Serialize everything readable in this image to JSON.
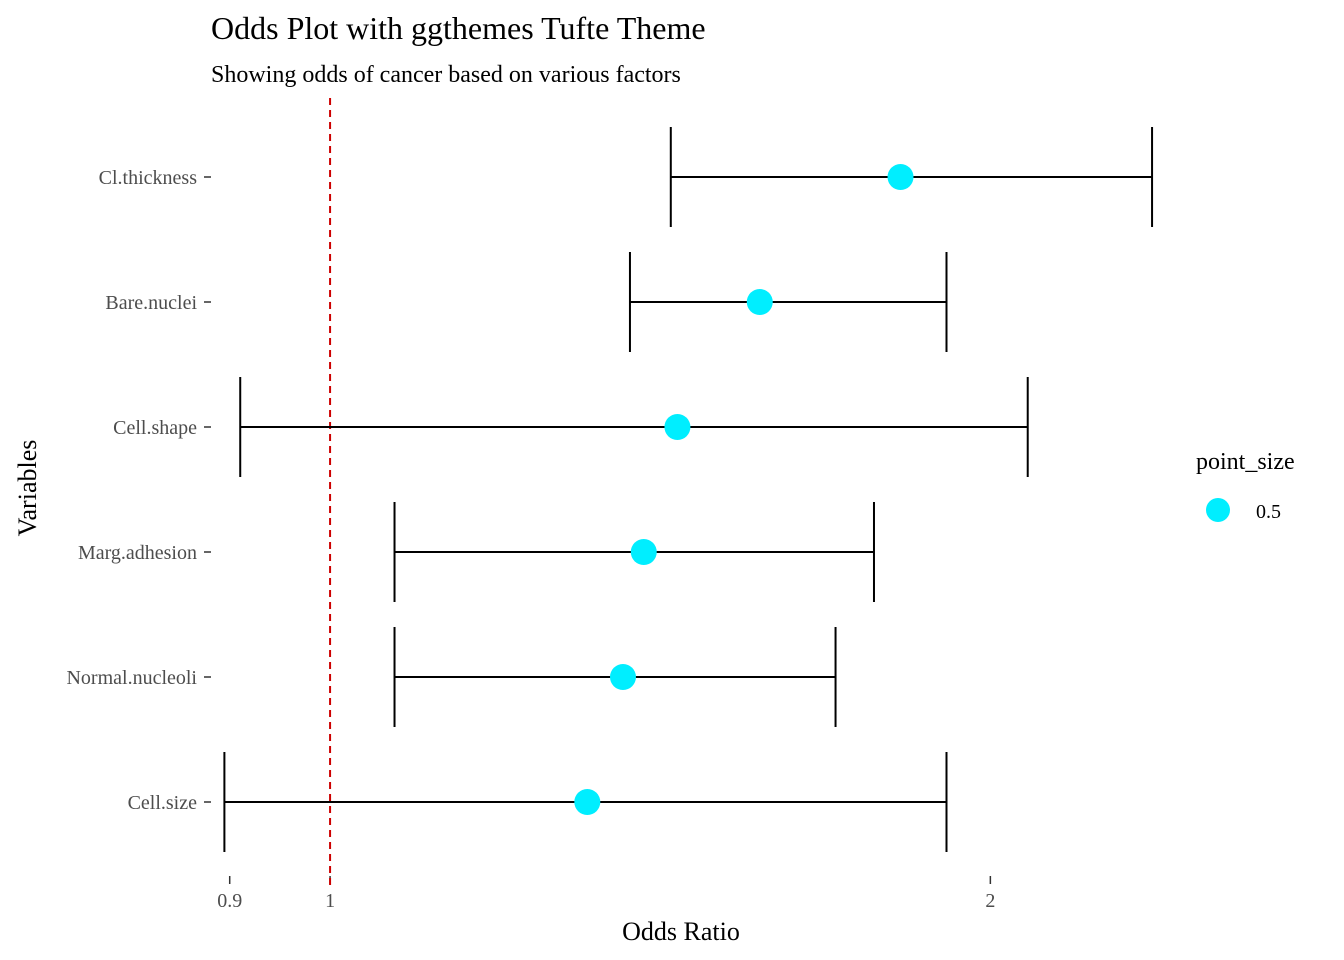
{
  "chart_data": {
    "type": "scatter",
    "title": "Odds Plot with ggthemes Tufte Theme",
    "subtitle": "Showing odds of cancer based on various factors",
    "xlabel": "Odds Ratio",
    "ylabel": "Variables",
    "x_scale": "log",
    "xlim": [
      0.8825,
      2.41
    ],
    "x_ticks": [
      0.9,
      1,
      2
    ],
    "x_tick_labels": [
      "0.9",
      "1",
      "2"
    ],
    "reference_line": {
      "x": 1,
      "style": "dashed",
      "color": "#cc0000"
    },
    "categories": [
      "Cl.thickness",
      "Bare.nuclei",
      "Cell.shape",
      "Marg.adhesion",
      "Normal.nucleoli",
      "Cell.size"
    ],
    "series": [
      {
        "values": [
          1.82,
          1.57,
          1.44,
          1.39,
          1.36,
          1.31
        ],
        "lower": [
          1.43,
          1.37,
          0.91,
          1.07,
          1.07,
          0.895
        ],
        "upper": [
          2.37,
          1.91,
          2.08,
          1.77,
          1.7,
          1.91
        ]
      }
    ],
    "point_color": "#00eeff",
    "legend": {
      "title": "point_size",
      "entries": [
        "0.5"
      ],
      "placement": "right"
    },
    "grid": false
  }
}
